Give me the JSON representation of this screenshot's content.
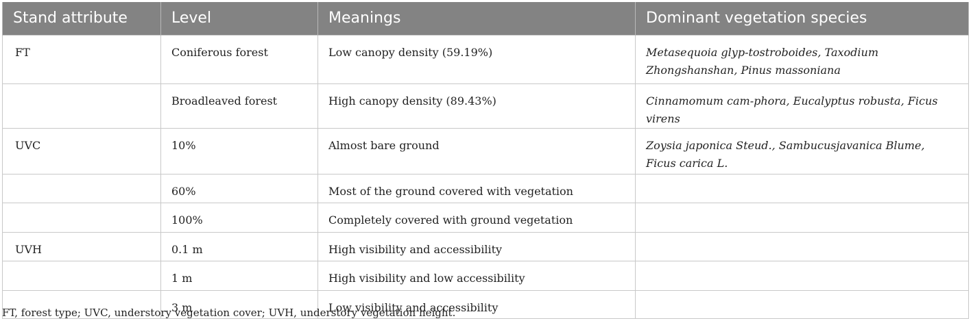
{
  "table": {
    "headers": [
      "Stand attribute",
      "Level",
      "Meanings",
      "Dominant vegetation species"
    ],
    "rows": [
      {
        "attribute": "FT",
        "level": "Coniferous forest",
        "meaning": "Low canopy density (59.19%)",
        "species": "Metasequoia glyp-tostroboides, Taxodium Zhongshanshan, Pinus massoniana"
      },
      {
        "attribute": "",
        "level": "Broadleaved forest",
        "meaning": "High canopy density (89.43%)",
        "species": "Cinnamomum cam-phora, Eucalyptus robusta, Ficus virens"
      },
      {
        "attribute": "UVC",
        "level": "10%",
        "meaning": "Almost bare ground",
        "species": "Zoysia japonica Steud., Sambucusjavanica Blume, Ficus carica L."
      },
      {
        "attribute": "",
        "level": "60%",
        "meaning": "Most of the ground covered with vegetation",
        "species": ""
      },
      {
        "attribute": "",
        "level": "100%",
        "meaning": "Completely covered with ground vegetation",
        "species": ""
      },
      {
        "attribute": "UVH",
        "level": "0.1 m",
        "meaning": "High visibility and accessibility",
        "species": ""
      },
      {
        "attribute": "",
        "level": "1 m",
        "meaning": "High visibility and low accessibility",
        "species": ""
      },
      {
        "attribute": "",
        "level": "3 m",
        "meaning": "Low visibility and accessibility",
        "species": ""
      }
    ]
  },
  "footnote": "FT, forest type; UVC, understory vegetation cover; UVH, understory vegetation height.",
  "colors": {
    "header_bg": "#838383",
    "header_text": "#ffffff",
    "border": "#c8c8c8"
  }
}
